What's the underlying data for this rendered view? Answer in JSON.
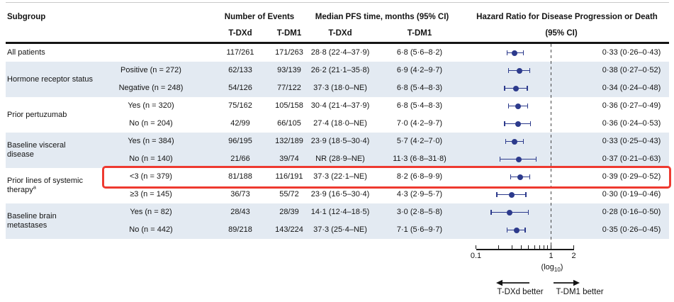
{
  "header": {
    "subgroup": "Subgroup",
    "events": "Number of Events",
    "pfs": "Median PFS time, months (95% CI)",
    "hr_line1": "Hazard Ratio for Disease Progression or Death",
    "hr_line2": "(95% CI)",
    "events_tdxd": "T-DXd",
    "events_tdm1": "T-DM1",
    "pfs_tdxd": "T-DXd",
    "pfs_tdm1": "T-DM1"
  },
  "groups": [
    {
      "label": "All patients",
      "sup": "",
      "row_start": 0,
      "row_count": 1
    },
    {
      "label": "Hormone receptor status",
      "sup": "",
      "row_start": 1,
      "row_count": 2
    },
    {
      "label": "Prior pertuzumab",
      "sup": "",
      "row_start": 3,
      "row_count": 2
    },
    {
      "label": "Baseline visceral disease",
      "sup": "",
      "row_start": 5,
      "row_count": 2
    },
    {
      "label": "Prior lines of systemic therapy",
      "sup": "a",
      "row_start": 7,
      "row_count": 2
    },
    {
      "label": "Baseline brain metastases",
      "sup": "",
      "row_start": 9,
      "row_count": 2
    }
  ],
  "rows": [
    {
      "category": "",
      "ev_tdxd": "117/261",
      "ev_tdm1": "171/263",
      "pfs_tdxd": "28·8 (22·4–37·9)",
      "pfs_tdm1": "6·8 (5·6–8·2)",
      "hr_label": "0·33 (0·26–0·43)",
      "hr": 0.33,
      "lo": 0.26,
      "hi": 0.43,
      "banded": false,
      "highlighted": false
    },
    {
      "category": "Positive (n = 272)",
      "ev_tdxd": "62/133",
      "ev_tdm1": "93/139",
      "pfs_tdxd": "26·2 (21·1–35·8)",
      "pfs_tdm1": "6·9 (4·2–9·7)",
      "hr_label": "0·38 (0·27–0·52)",
      "hr": 0.38,
      "lo": 0.27,
      "hi": 0.52,
      "banded": true,
      "highlighted": false
    },
    {
      "category": "Negative (n = 248)",
      "ev_tdxd": "54/126",
      "ev_tdm1": "77/122",
      "pfs_tdxd": "37·3 (18·0–NE)",
      "pfs_tdm1": "6·8 (5·4–8·3)",
      "hr_label": "0·34 (0·24–0·48)",
      "hr": 0.34,
      "lo": 0.24,
      "hi": 0.48,
      "banded": true,
      "highlighted": false
    },
    {
      "category": "Yes (n = 320)",
      "ev_tdxd": "75/162",
      "ev_tdm1": "105/158",
      "pfs_tdxd": "30·4 (21·4–37·9)",
      "pfs_tdm1": "6·8 (5·4–8·3)",
      "hr_label": "0·36 (0·27–0·49)",
      "hr": 0.36,
      "lo": 0.27,
      "hi": 0.49,
      "banded": false,
      "highlighted": false
    },
    {
      "category": "No (n = 204)",
      "ev_tdxd": "42/99",
      "ev_tdm1": "66/105",
      "pfs_tdxd": "27·4 (18·0–NE)",
      "pfs_tdm1": "7·0 (4·2–9·7)",
      "hr_label": "0·36 (0·24–0·53)",
      "hr": 0.36,
      "lo": 0.24,
      "hi": 0.53,
      "banded": false,
      "highlighted": false
    },
    {
      "category": "Yes (n = 384)",
      "ev_tdxd": "96/195",
      "ev_tdm1": "132/189",
      "pfs_tdxd": "23·9 (18·5–30·4)",
      "pfs_tdm1": "5·7 (4·2–7·0)",
      "hr_label": "0·33 (0·25–0·43)",
      "hr": 0.33,
      "lo": 0.25,
      "hi": 0.43,
      "banded": true,
      "highlighted": false
    },
    {
      "category": "No (n = 140)",
      "ev_tdxd": "21/66",
      "ev_tdm1": "39/74",
      "pfs_tdxd": "NR (28·9–NE)",
      "pfs_tdm1": "11·3 (6·8–31·8)",
      "hr_label": "0·37 (0·21–0·63)",
      "hr": 0.37,
      "lo": 0.21,
      "hi": 0.63,
      "banded": true,
      "highlighted": false
    },
    {
      "category": "<3 (n = 379)",
      "ev_tdxd": "81/188",
      "ev_tdm1": "116/191",
      "pfs_tdxd": "37·3 (22·1–NE)",
      "pfs_tdm1": "8·2 (6·8–9·9)",
      "hr_label": "0·39 (0·29–0·52)",
      "hr": 0.39,
      "lo": 0.29,
      "hi": 0.52,
      "banded": false,
      "highlighted": true
    },
    {
      "category": "≥3 (n = 145)",
      "ev_tdxd": "36/73",
      "ev_tdm1": "55/72",
      "pfs_tdxd": "23·9 (16·5–30·4)",
      "pfs_tdm1": "4·3 (2·9–5·7)",
      "hr_label": "0·30 (0·19–0·46)",
      "hr": 0.3,
      "lo": 0.19,
      "hi": 0.46,
      "banded": false,
      "highlighted": false
    },
    {
      "category": "Yes (n = 82)",
      "ev_tdxd": "28/43",
      "ev_tdm1": "28/39",
      "pfs_tdxd": "14·1 (12·4–18·5)",
      "pfs_tdm1": "3·0 (2·8–5·8)",
      "hr_label": "0·28 (0·16–0·50)",
      "hr": 0.28,
      "lo": 0.16,
      "hi": 0.5,
      "banded": true,
      "highlighted": false
    },
    {
      "category": "No (n = 442)",
      "ev_tdxd": "89/218",
      "ev_tdm1": "143/224",
      "pfs_tdxd": "37·3 (25·4–NE)",
      "pfs_tdm1": "7·1 (5·6–9·7)",
      "hr_label": "0·35 (0·26–0·45)",
      "hr": 0.35,
      "lo": 0.26,
      "hi": 0.45,
      "banded": true,
      "highlighted": false
    }
  ],
  "axis": {
    "min": 0.1,
    "max": 2,
    "reference_value": 1,
    "minor_ticks": [
      0.1,
      0.2,
      0.3,
      0.4,
      0.5,
      0.6,
      0.7,
      0.8,
      0.9,
      1,
      2
    ],
    "labeled_ticks": [
      {
        "value": 0.1,
        "label": "0.1"
      },
      {
        "value": 1,
        "label": "1"
      },
      {
        "value": 2,
        "label": "2"
      }
    ],
    "scale_label_pre": "(log",
    "scale_label_sub": "10",
    "scale_label_post": ")",
    "left_arrow_label": "T-DXd better",
    "right_arrow_label": "T-DM1 better"
  },
  "colors": {
    "marker": "#2c3a8c",
    "band": "#e3eaf2",
    "highlight": "#ee3a30",
    "axis": "#1a1a1a",
    "dash": "#444444"
  },
  "chart_data": {
    "type": "scatter",
    "subtype": "forest-plot",
    "title": "Hazard Ratio for Disease Progression or Death (95% CI)",
    "x_axis": {
      "scale": "log10",
      "min": 0.1,
      "max": 2,
      "tick_labels": [
        "0.1",
        "1",
        "2"
      ],
      "reference_line": 1
    },
    "legend": {
      "left_direction": "T-DXd better",
      "right_direction": "T-DM1 better"
    },
    "points": [
      {
        "subgroup": "All patients",
        "category": "",
        "hr": 0.33,
        "ci_low": 0.26,
        "ci_high": 0.43
      },
      {
        "subgroup": "Hormone receptor status",
        "category": "Positive (n = 272)",
        "hr": 0.38,
        "ci_low": 0.27,
        "ci_high": 0.52
      },
      {
        "subgroup": "Hormone receptor status",
        "category": "Negative (n = 248)",
        "hr": 0.34,
        "ci_low": 0.24,
        "ci_high": 0.48
      },
      {
        "subgroup": "Prior pertuzumab",
        "category": "Yes (n = 320)",
        "hr": 0.36,
        "ci_low": 0.27,
        "ci_high": 0.49
      },
      {
        "subgroup": "Prior pertuzumab",
        "category": "No (n = 204)",
        "hr": 0.36,
        "ci_low": 0.24,
        "ci_high": 0.53
      },
      {
        "subgroup": "Baseline visceral disease",
        "category": "Yes (n = 384)",
        "hr": 0.33,
        "ci_low": 0.25,
        "ci_high": 0.43
      },
      {
        "subgroup": "Baseline visceral disease",
        "category": "No (n = 140)",
        "hr": 0.37,
        "ci_low": 0.21,
        "ci_high": 0.63
      },
      {
        "subgroup": "Prior lines of systemic therapy",
        "category": "<3 (n = 379)",
        "hr": 0.39,
        "ci_low": 0.29,
        "ci_high": 0.52
      },
      {
        "subgroup": "Prior lines of systemic therapy",
        "category": "≥3 (n = 145)",
        "hr": 0.3,
        "ci_low": 0.19,
        "ci_high": 0.46
      },
      {
        "subgroup": "Baseline brain metastases",
        "category": "Yes (n = 82)",
        "hr": 0.28,
        "ci_low": 0.16,
        "ci_high": 0.5
      },
      {
        "subgroup": "Baseline brain metastases",
        "category": "No (n = 442)",
        "hr": 0.35,
        "ci_low": 0.26,
        "ci_high": 0.45
      }
    ]
  }
}
